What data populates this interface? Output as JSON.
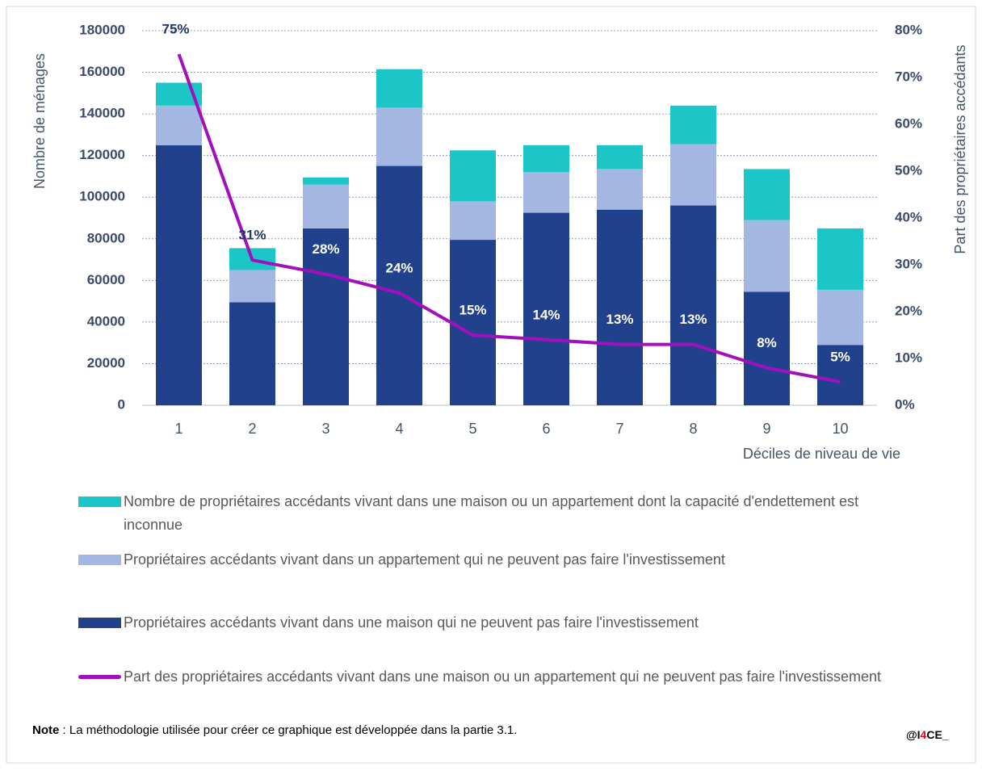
{
  "chart_data": {
    "type": "bar",
    "categories": [
      "1",
      "2",
      "3",
      "4",
      "5",
      "6",
      "7",
      "8",
      "9",
      "10"
    ],
    "series": [
      {
        "name": "Propriétaires accédants vivant dans une maison qui ne peuvent pas faire l'investissement",
        "color": "#22418c",
        "values": [
          125000,
          49500,
          85000,
          115000,
          79500,
          92500,
          94000,
          96000,
          54500,
          29000
        ]
      },
      {
        "name": "Propriétaires accédants vivant dans un appartement qui ne peuvent pas faire l'investissement",
        "color": "#a4b6e2",
        "values": [
          19000,
          15500,
          21000,
          28000,
          18500,
          19500,
          19500,
          29500,
          34500,
          26500
        ]
      },
      {
        "name": "Nombre de propriétaires accédants vivant dans une maison ou un appartement dont la capacité d'endettement est inconnue",
        "color": "#1cc6c6",
        "values": [
          11000,
          10500,
          3500,
          18500,
          24500,
          13000,
          11500,
          18500,
          24500,
          29500
        ]
      },
      {
        "name": "Part des propriétaires accédants vivant dans une maison ou un appartement qui ne peuvent pas faire l'investissement",
        "color": "#a20fbd",
        "type": "line",
        "axis": "y2",
        "values": [
          75,
          31,
          28,
          24,
          15,
          14,
          13,
          13,
          8,
          5
        ],
        "value_labels": [
          "75%",
          "31%",
          "28%",
          "24%",
          "15%",
          "14%",
          "13%",
          "13%",
          "8%",
          "5%"
        ]
      }
    ],
    "y_label": "Nombre de ménages",
    "y2_label": "Part des propriétaires accédants",
    "x_label": "Déciles de niveau de vie",
    "ylim": [
      0,
      180000
    ],
    "yticks": [
      0,
      20000,
      40000,
      60000,
      80000,
      100000,
      120000,
      140000,
      160000,
      180000
    ],
    "y2lim": [
      0,
      80
    ],
    "y2ticks": [
      {
        "value": 0,
        "label": "0%"
      },
      {
        "value": 10,
        "label": "10%"
      },
      {
        "value": 20,
        "label": "20%"
      },
      {
        "value": 30,
        "label": "30%"
      },
      {
        "value": 40,
        "label": "40%"
      },
      {
        "value": 50,
        "label": "50%"
      },
      {
        "value": 60,
        "label": "60%"
      },
      {
        "value": 70,
        "label": "70%"
      },
      {
        "value": 80,
        "label": "80%"
      }
    ],
    "grid": true
  },
  "note": {
    "label": "Note",
    "text": " : La méthodologie utilisée pour créer ce graphique est développée dans la partie 3.1."
  },
  "credit": [
    "@I",
    "4",
    "CE_"
  ]
}
